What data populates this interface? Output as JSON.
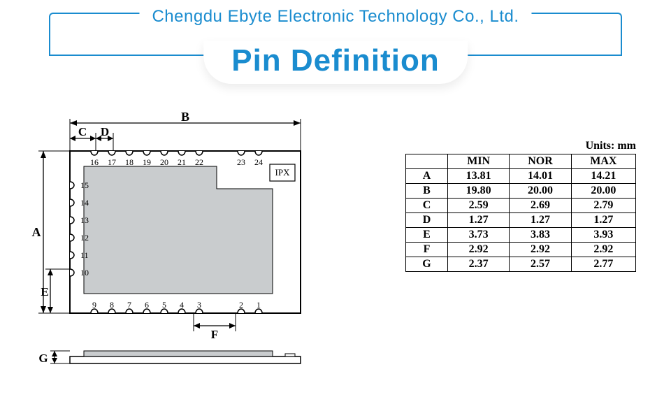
{
  "header": {
    "company": "Chengdu Ebyte Electronic Technology Co., Ltd.",
    "title": "Pin Definition",
    "accent_color": "#1a8ccf"
  },
  "diagram": {
    "outline_color": "#000000",
    "shield_fill": "#c9ccce",
    "dim_font": "Times New Roman",
    "dim_fontsize": 18,
    "pin_label_fontsize": 12,
    "ipx_label": "IPX",
    "top_pins": [
      "16",
      "17",
      "18",
      "19",
      "20",
      "21",
      "22",
      "23",
      "24"
    ],
    "left_pins": [
      "15",
      "14",
      "13",
      "12",
      "11",
      "10"
    ],
    "bottom_pins": [
      "9",
      "8",
      "7",
      "6",
      "5",
      "4",
      "3",
      "2",
      "1"
    ],
    "dims": {
      "A": "A",
      "B": "B",
      "C": "C",
      "D": "D",
      "E": "E",
      "F": "F",
      "G": "G"
    }
  },
  "table": {
    "units_label": "Units: mm",
    "columns": [
      "",
      "MIN",
      "NOR",
      "MAX"
    ],
    "rows": [
      [
        "A",
        "13.81",
        "14.01",
        "14.21"
      ],
      [
        "B",
        "19.80",
        "20.00",
        "20.00"
      ],
      [
        "C",
        "2.59",
        "2.69",
        "2.79"
      ],
      [
        "D",
        "1.27",
        "1.27",
        "1.27"
      ],
      [
        "E",
        "3.73",
        "3.83",
        "3.93"
      ],
      [
        "F",
        "2.92",
        "2.92",
        "2.92"
      ],
      [
        "G",
        "2.37",
        "2.57",
        "2.77"
      ]
    ],
    "border_color": "#000000",
    "font_family": "Times New Roman",
    "fontsize": 16
  }
}
